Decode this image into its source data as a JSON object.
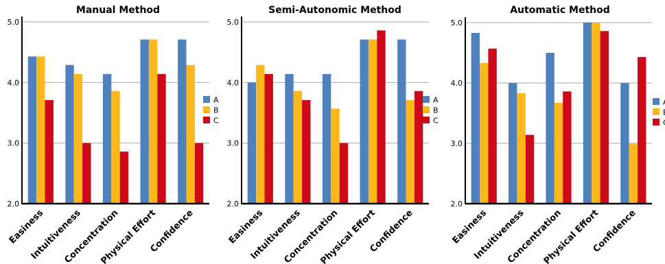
{
  "chart_data": [
    {
      "type": "bar",
      "title": "Manual Method",
      "categories": [
        "Easiness",
        "Intuitiveness",
        "Concentration",
        "Physical Effort",
        "Confidence"
      ],
      "series": [
        {
          "name": "A",
          "values": [
            4.43,
            4.29,
            4.14,
            4.71,
            4.71
          ]
        },
        {
          "name": "B",
          "values": [
            4.43,
            4.14,
            3.86,
            4.71,
            4.29
          ]
        },
        {
          "name": "C",
          "values": [
            3.71,
            3.0,
            2.86,
            4.14,
            3.0
          ]
        }
      ],
      "yticks": [
        "2.0",
        "3.0",
        "4.0",
        "5.0"
      ],
      "ylim": [
        2.0,
        5.0
      ],
      "grid": true,
      "legend": "right"
    },
    {
      "type": "bar",
      "title": "Semi-Autonomic Method",
      "categories": [
        "Easiness",
        "Intuitiveness",
        "Concentration",
        "Physical Effort",
        "Confidence"
      ],
      "series": [
        {
          "name": "A",
          "values": [
            4.0,
            4.14,
            4.14,
            4.71,
            4.71
          ]
        },
        {
          "name": "B",
          "values": [
            4.29,
            3.86,
            3.57,
            4.71,
            3.71
          ]
        },
        {
          "name": "C",
          "values": [
            4.14,
            3.71,
            3.0,
            4.86,
            3.86
          ]
        }
      ],
      "yticks": [
        "2.0",
        "3.0",
        "4.0",
        "5.0"
      ],
      "ylim": [
        2.0,
        5.0
      ],
      "grid": true,
      "legend": "right"
    },
    {
      "type": "bar",
      "title": "Automatic Method",
      "categories": [
        "Easiness",
        "Intuitiveness",
        "Concentration",
        "Physical Effort",
        "Confidence"
      ],
      "series": [
        {
          "name": "A",
          "values": [
            4.83,
            4.0,
            4.5,
            5.0,
            4.0
          ]
        },
        {
          "name": "B",
          "values": [
            4.33,
            3.83,
            3.67,
            5.0,
            3.0
          ]
        },
        {
          "name": "C",
          "values": [
            4.57,
            3.14,
            3.86,
            4.86,
            4.43
          ]
        }
      ],
      "yticks": [
        "2.0",
        "3.0",
        "4.0",
        "5.0"
      ],
      "ylim": [
        2.0,
        5.0
      ],
      "grid": true,
      "legend": "right"
    }
  ],
  "colors": {
    "A": "#4f81bd",
    "B": "#ffb81c",
    "C": "#cc0a18",
    "grid": "#a6a6a6",
    "axis": "#000000"
  }
}
